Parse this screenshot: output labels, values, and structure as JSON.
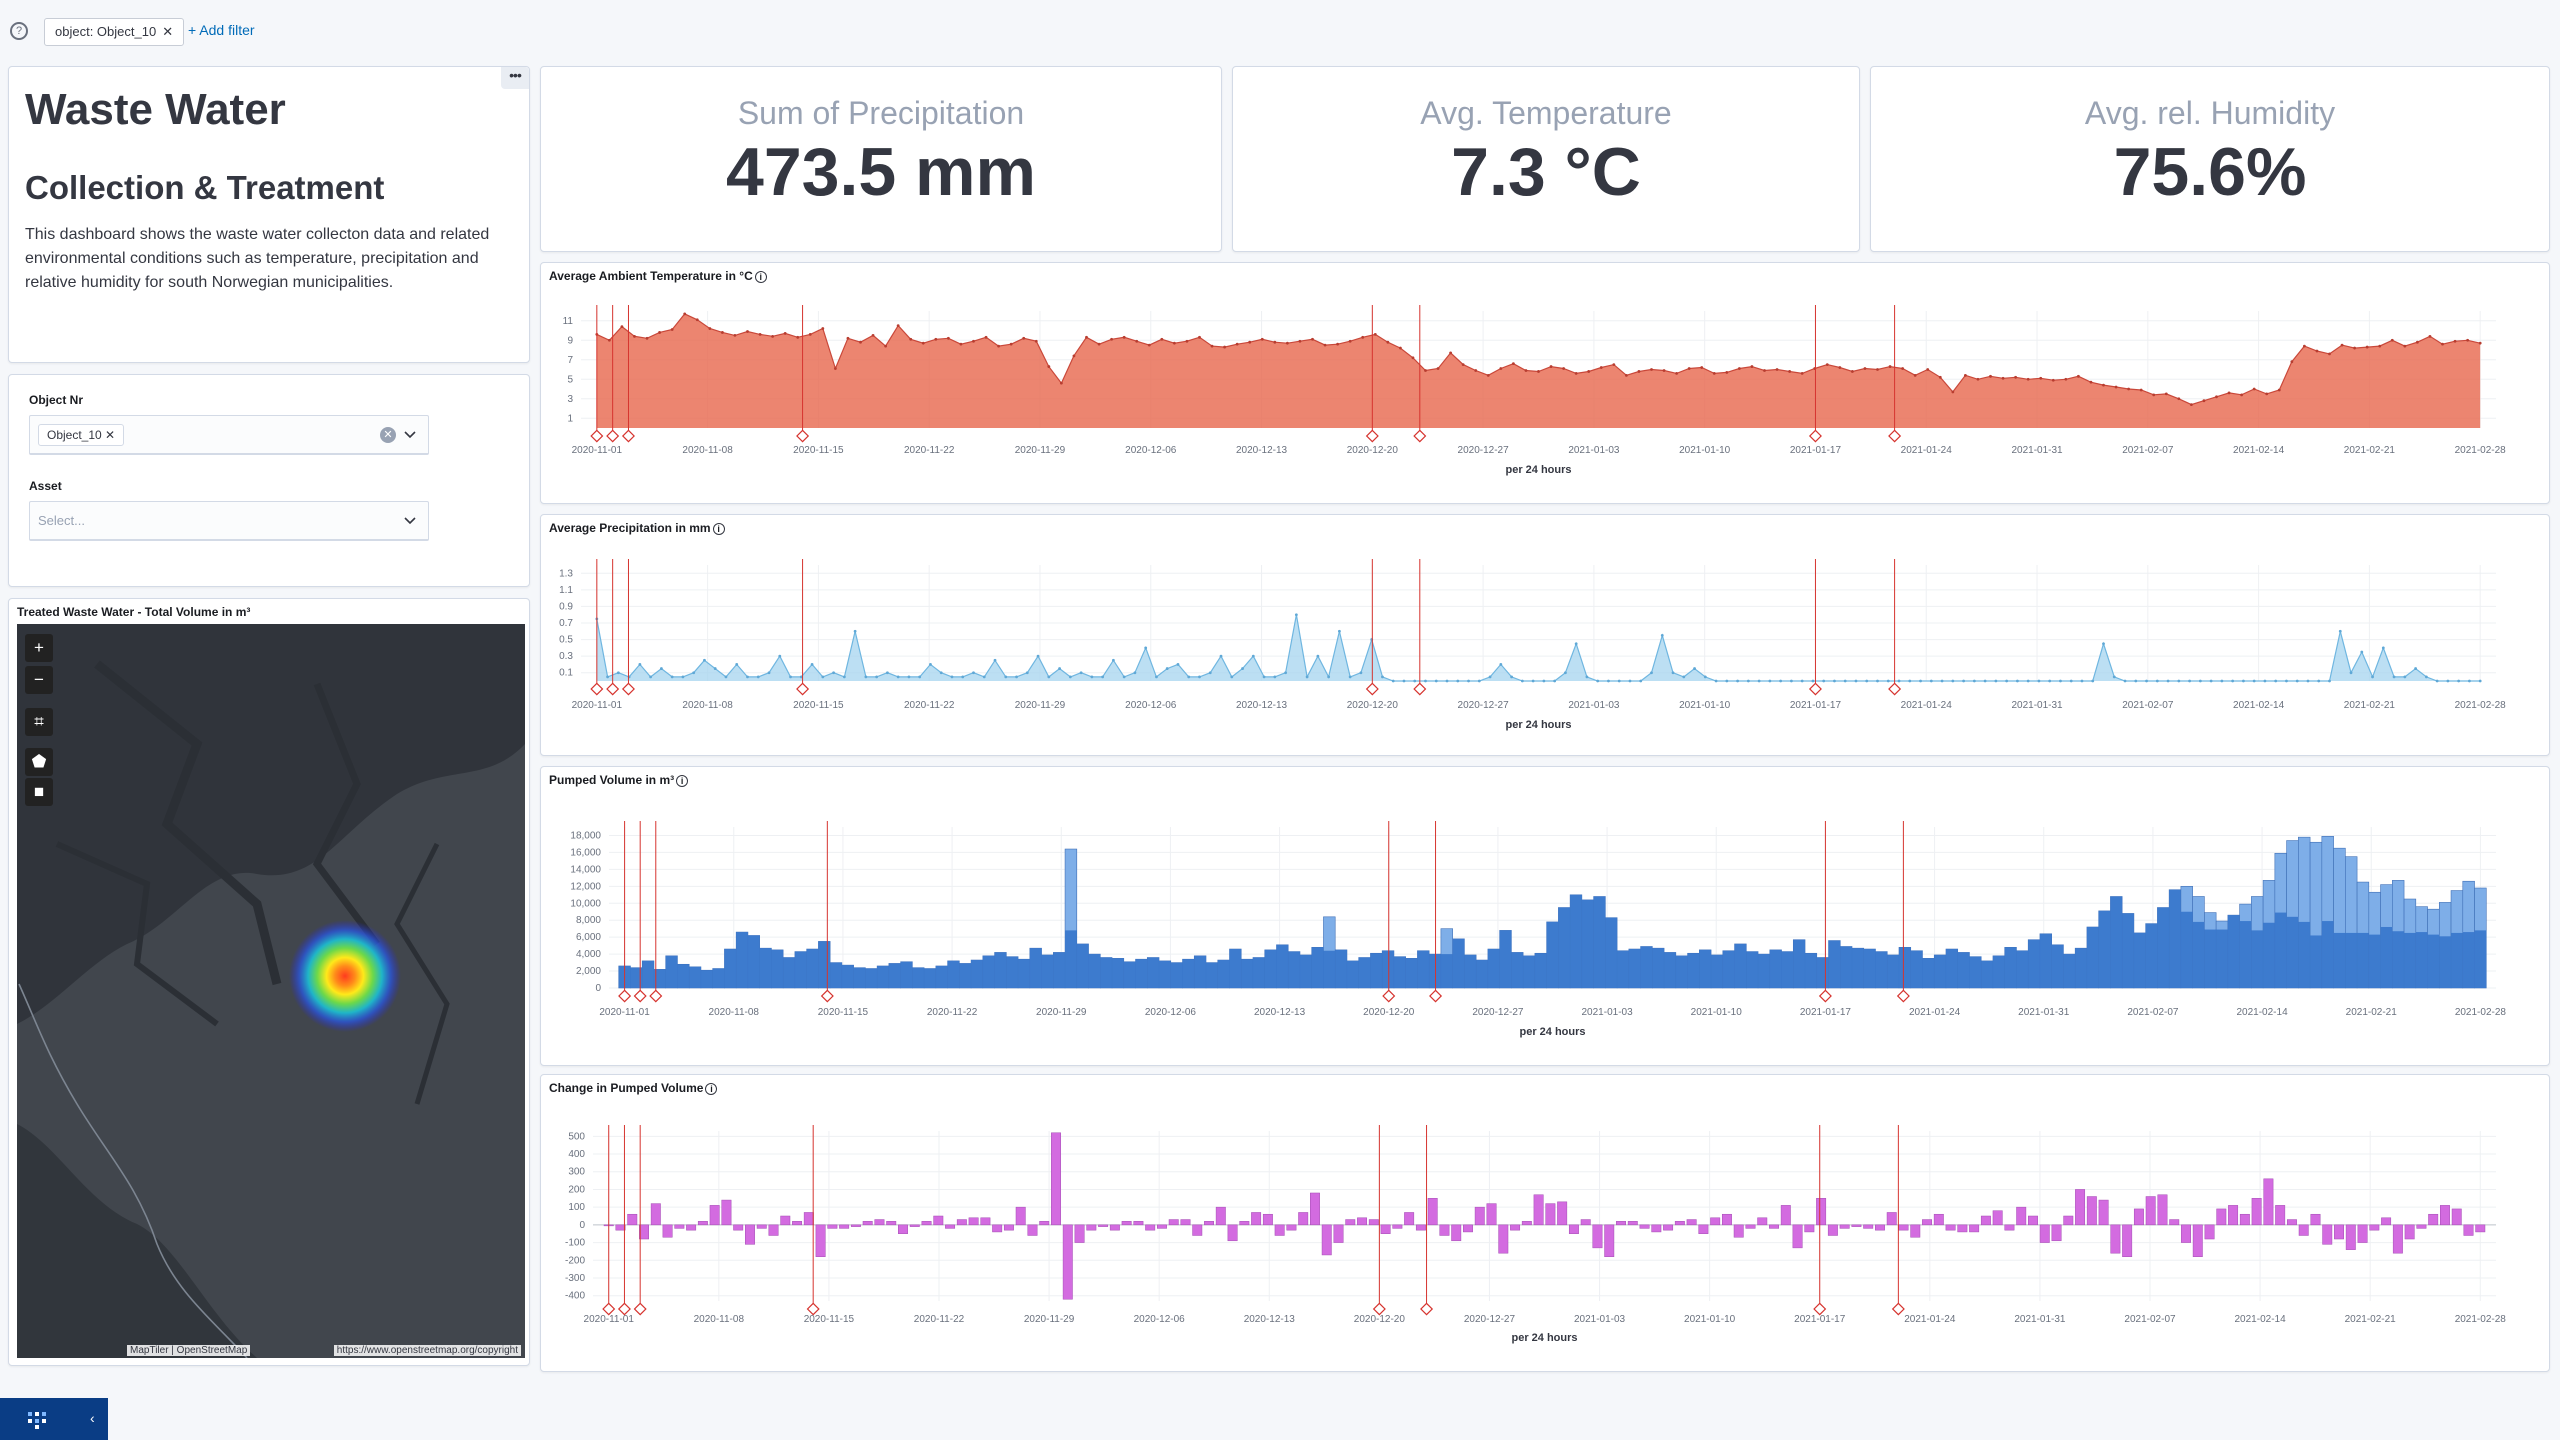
{
  "filters": {
    "items": [
      {
        "label": "object: Object_10"
      }
    ],
    "add_filter": "+ Add filter"
  },
  "intro": {
    "title": "Waste Water",
    "subtitle": "Collection & Treatment",
    "description": "This dashboard shows the waste water collecton data and related environmental conditions such as temperature, precipitation and relative humidity for south Norwegian municipalities."
  },
  "controls": {
    "object_label": "Object Nr",
    "object_value": "Object_10",
    "asset_label": "Asset",
    "asset_placeholder": "Select..."
  },
  "map": {
    "title": "Treated Waste Water - Total Volume in m³",
    "attribution_left": "MapTiler | OpenStreetMap",
    "attribution_right": "https://www.openstreetmap.org/copyright"
  },
  "metrics": [
    {
      "label": "Sum of Precipitation",
      "value": "473.5 mm"
    },
    {
      "label": "Avg. Temperature",
      "value": "7.3 °C"
    },
    {
      "label": "Avg. rel. Humidity",
      "value": "75.6%"
    }
  ],
  "colors": {
    "temperature": "#e7664c",
    "precipitation": "#a6d4ef",
    "pumped_dark": "#3a78cc",
    "pumped_light": "#7eaee8",
    "change": "#d36be0",
    "annotation": "#d6342f"
  },
  "chart_data": [
    {
      "id": "temperature",
      "type": "area",
      "title": "Average Ambient Temperature in °C",
      "xlabel": "per 24 hours",
      "x_range": [
        "2020-10-31",
        "2021-03-01"
      ],
      "x_ticks": [
        "2020-11-01",
        "2020-11-08",
        "2020-11-15",
        "2020-11-22",
        "2020-11-29",
        "2020-12-06",
        "2020-12-13",
        "2020-12-20",
        "2020-12-27",
        "2021-01-03",
        "2021-01-10",
        "2021-01-17",
        "2021-01-24",
        "2021-01-31",
        "2021-02-07",
        "2021-02-14",
        "2021-02-21",
        "2021-02-28"
      ],
      "y_ticks": [
        1,
        3,
        5,
        7,
        9,
        11
      ],
      "ylim": [
        0,
        12
      ],
      "series": [
        {
          "values": [
            9.6,
            9.0,
            10.4,
            9.4,
            9.2,
            9.8,
            10.1,
            11.7,
            11.1,
            10.2,
            9.8,
            9.5,
            9.9,
            9.6,
            9.4,
            9.7,
            9.3,
            9.6,
            10.2,
            6.1,
            9.2,
            8.8,
            9.5,
            8.4,
            10.5,
            9.1,
            8.7,
            9.1,
            9.2,
            8.6,
            8.9,
            9.3,
            8.4,
            8.6,
            9.2,
            8.9,
            6.3,
            4.6,
            7.4,
            9.3,
            8.6,
            9.1,
            9.3,
            8.9,
            8.5,
            9.1,
            8.7,
            8.9,
            9.3,
            8.4,
            8.3,
            8.6,
            8.8,
            9.1,
            8.8,
            8.7,
            8.9,
            9.1,
            8.5,
            8.6,
            8.9,
            9.3,
            9.6,
            8.8,
            8.2,
            7.2,
            5.9,
            6.1,
            7.7,
            6.5,
            5.9,
            5.4,
            6.1,
            6.6,
            5.9,
            5.8,
            6.3,
            6.1,
            5.6,
            5.8,
            6.2,
            6.5,
            5.4,
            5.8,
            6.0,
            5.9,
            5.6,
            6.1,
            6.2,
            5.6,
            5.7,
            6.1,
            6.3,
            5.9,
            6.0,
            5.8,
            5.6,
            6.1,
            6.5,
            6.2,
            5.8,
            6.1,
            6.0,
            6.3,
            6.1,
            5.4,
            6.0,
            5.2,
            3.7,
            5.4,
            5.0,
            5.3,
            5.1,
            5.2,
            5.0,
            5.1,
            4.9,
            5.0,
            5.3,
            4.7,
            4.4,
            4.2,
            4.0,
            3.9,
            3.4,
            3.5,
            3.0,
            2.4,
            2.8,
            3.2,
            3.6,
            3.4,
            4.0,
            3.5,
            3.9,
            6.8,
            8.4,
            7.9,
            7.6,
            8.5,
            8.2,
            8.3,
            8.4,
            9.0,
            8.4,
            8.8,
            9.4,
            8.6,
            8.9,
            9.0,
            8.7
          ]
        }
      ],
      "annotations": [
        "2020-11-01",
        "2020-11-02",
        "2020-11-03",
        "2020-11-14",
        "2020-12-20",
        "2020-12-23",
        "2021-01-17",
        "2021-01-22"
      ]
    },
    {
      "id": "precipitation",
      "type": "area",
      "title": "Average Precipitation in mm",
      "xlabel": "per 24 hours",
      "x_range": [
        "2020-10-31",
        "2021-03-01"
      ],
      "x_ticks": [
        "2020-11-01",
        "2020-11-08",
        "2020-11-15",
        "2020-11-22",
        "2020-11-29",
        "2020-12-06",
        "2020-12-13",
        "2020-12-20",
        "2020-12-27",
        "2021-01-03",
        "2021-01-10",
        "2021-01-17",
        "2021-01-24",
        "2021-01-31",
        "2021-02-07",
        "2021-02-14",
        "2021-02-21",
        "2021-02-28"
      ],
      "y_ticks": [
        0.1,
        0.3,
        0.5,
        0.7,
        0.9,
        1.1,
        1.3
      ],
      "ylim": [
        0,
        1.4
      ],
      "series": [
        {
          "values": [
            0.75,
            0.05,
            0.1,
            0.05,
            0.2,
            0.05,
            0.15,
            0.05,
            0.05,
            0.1,
            0.25,
            0.15,
            0.05,
            0.2,
            0.05,
            0.05,
            0.1,
            0.3,
            0.05,
            0.05,
            0.2,
            0.05,
            0.1,
            0.05,
            0.6,
            0.05,
            0.05,
            0.1,
            0.05,
            0.05,
            0.05,
            0.2,
            0.1,
            0.05,
            0.05,
            0.1,
            0.05,
            0.25,
            0.05,
            0.05,
            0.1,
            0.3,
            0.05,
            0.15,
            0.05,
            0.1,
            0.05,
            0.05,
            0.25,
            0.05,
            0.1,
            0.4,
            0.05,
            0.15,
            0.2,
            0.05,
            0.05,
            0.1,
            0.3,
            0.05,
            0.15,
            0.3,
            0.05,
            0.05,
            0.1,
            0.8,
            0.05,
            0.3,
            0.05,
            0.6,
            0.05,
            0.1,
            0.5,
            0.05,
            0.0,
            0.0,
            0.0,
            0.0,
            0.0,
            0.0,
            0.0,
            0.0,
            0.0,
            0.05,
            0.2,
            0.05,
            0.0,
            0.0,
            0.0,
            0.0,
            0.1,
            0.45,
            0.05,
            0.0,
            0.0,
            0.0,
            0.0,
            0.0,
            0.1,
            0.55,
            0.1,
            0.05,
            0.15,
            0.05,
            0.0,
            0.0,
            0.0,
            0.0,
            0.0,
            0.0,
            0.0,
            0.0,
            0.0,
            0.0,
            0.0,
            0.0,
            0.0,
            0.0,
            0.0,
            0.0,
            0.0,
            0.0,
            0.0,
            0.0,
            0.0,
            0.0,
            0.0,
            0.0,
            0.0,
            0.0,
            0.0,
            0.0,
            0.0,
            0.0,
            0.0,
            0.0,
            0.0,
            0.0,
            0.0,
            0.0,
            0.45,
            0.05,
            0.0,
            0.0,
            0.0,
            0.0,
            0.0,
            0.0,
            0.0,
            0.0,
            0.0,
            0.0,
            0.0,
            0.0,
            0.0,
            0.0,
            0.0,
            0.0,
            0.0,
            0.0,
            0.0,
            0.0,
            0.6,
            0.1,
            0.35,
            0.05,
            0.4,
            0.05,
            0.05,
            0.15,
            0.05,
            0.0,
            0.0,
            0.0,
            0.0,
            0.0
          ]
        }
      ],
      "annotations": [
        "2020-11-01",
        "2020-11-02",
        "2020-11-03",
        "2020-11-14",
        "2020-12-20",
        "2020-12-23",
        "2021-01-17",
        "2021-01-22"
      ]
    },
    {
      "id": "pumped",
      "type": "bar",
      "title": "Pumped Volume in m³",
      "xlabel": "per 24 hours",
      "x_range": [
        "2020-10-31",
        "2021-03-01"
      ],
      "x_ticks": [
        "2020-11-01",
        "2020-11-08",
        "2020-11-15",
        "2020-11-22",
        "2020-11-29",
        "2020-12-06",
        "2020-12-13",
        "2020-12-20",
        "2020-12-27",
        "2021-01-03",
        "2021-01-10",
        "2021-01-17",
        "2021-01-24",
        "2021-01-31",
        "2021-02-07",
        "2021-02-14",
        "2021-02-21",
        "2021-02-28"
      ],
      "y_ticks": [
        0,
        2000,
        4000,
        6000,
        8000,
        10000,
        12000,
        14000,
        16000,
        18000
      ],
      "y_tick_labels": [
        "0",
        "2,000",
        "4,000",
        "6,000",
        "8,000",
        "10,000",
        "12,000",
        "14,000",
        "16,000",
        "18,000"
      ],
      "ylim": [
        0,
        19000
      ],
      "series": [
        {
          "values": [
            2600,
            2400,
            3200,
            2200,
            3800,
            2800,
            2500,
            2100,
            2300,
            4600,
            6600,
            6200,
            4700,
            4500,
            3600,
            4300,
            4600,
            5500,
            3000,
            2700,
            2400,
            2300,
            2600,
            2900,
            3100,
            2400,
            2300,
            2600,
            3200,
            2900,
            3300,
            3800,
            4200,
            3700,
            3400,
            4700,
            3900,
            4200,
            16400,
            5200,
            4000,
            3600,
            3500,
            3100,
            3400,
            3600,
            3200,
            3000,
            3400,
            3800,
            3000,
            3300,
            4600,
            3400,
            3600,
            4500,
            5100,
            4300,
            3900,
            4800,
            8400,
            4500,
            3200,
            3600,
            4100,
            4400,
            3700,
            3500,
            4400,
            4000,
            7000,
            5800,
            3900,
            3300,
            4600,
            6800,
            4200,
            3800,
            4100,
            7800,
            9500,
            11000,
            10400,
            10800,
            8300,
            4400,
            4600,
            4900,
            4700,
            4200,
            3800,
            4100,
            4500,
            3900,
            4400,
            5200,
            4300,
            4000,
            4500,
            4300,
            5700,
            4100,
            3600,
            5600,
            4900,
            4700,
            4600,
            4300,
            3900,
            4800,
            4400,
            3500,
            3900,
            4600,
            4200,
            3700,
            3200,
            3800,
            4800,
            4400,
            5700,
            6400,
            5100,
            4000,
            4700,
            7200,
            9100,
            10800,
            8800,
            6500,
            7600,
            9500,
            11600,
            12000,
            10800,
            8900,
            7900,
            8600,
            9900,
            10800,
            12700,
            15900,
            17400,
            17800,
            17200,
            17900,
            16500,
            15500,
            12500,
            11300,
            12200,
            12700,
            10500,
            9600,
            9300,
            10100,
            11500,
            12600,
            11800
          ]
        },
        {
          "values": [
            2600,
            2400,
            3200,
            2200,
            3800,
            2800,
            2500,
            2100,
            2300,
            4600,
            6600,
            6200,
            4700,
            4500,
            3600,
            4300,
            4600,
            5500,
            3000,
            2700,
            2400,
            2300,
            2600,
            2900,
            3100,
            2400,
            2300,
            2600,
            3200,
            2900,
            3300,
            3800,
            4200,
            3700,
            3400,
            4700,
            3900,
            4200,
            6800,
            5200,
            4000,
            3600,
            3500,
            3100,
            3400,
            3600,
            3200,
            3000,
            3400,
            3800,
            3000,
            3300,
            4600,
            3400,
            3600,
            4500,
            5100,
            4300,
            3900,
            4800,
            4400,
            4500,
            3200,
            3600,
            4100,
            4400,
            3700,
            3500,
            4400,
            4000,
            4000,
            5800,
            3900,
            3300,
            4600,
            6800,
            4200,
            3800,
            4100,
            7800,
            9500,
            11000,
            10400,
            10800,
            8300,
            4400,
            4600,
            4900,
            4700,
            4200,
            3800,
            4100,
            4500,
            3900,
            4400,
            5200,
            4300,
            4000,
            4500,
            4300,
            5700,
            4100,
            3600,
            5600,
            4900,
            4700,
            4600,
            4300,
            3900,
            4800,
            4400,
            3500,
            3900,
            4600,
            4200,
            3700,
            3200,
            3800,
            4800,
            4400,
            5700,
            6400,
            5100,
            4000,
            4700,
            7200,
            9100,
            10800,
            8800,
            6500,
            7600,
            9500,
            11600,
            9000,
            7800,
            6900,
            6900,
            8600,
            7900,
            6800,
            7700,
            8900,
            8400,
            7800,
            6200,
            7900,
            6500,
            6500,
            6500,
            6300,
            7200,
            6700,
            6500,
            6600,
            6300,
            6100,
            6500,
            6600,
            6800
          ]
        }
      ],
      "annotations": [
        "2020-11-01",
        "2020-11-02",
        "2020-11-03",
        "2020-11-14",
        "2020-12-20",
        "2020-12-23",
        "2021-01-17",
        "2021-01-22"
      ]
    },
    {
      "id": "change",
      "type": "bar",
      "title": "Change in Pumped Volume",
      "xlabel": "per 24 hours",
      "x_range": [
        "2020-10-31",
        "2021-03-01"
      ],
      "x_ticks": [
        "2020-11-01",
        "2020-11-08",
        "2020-11-15",
        "2020-11-22",
        "2020-11-29",
        "2020-12-06",
        "2020-12-13",
        "2020-12-20",
        "2020-12-27",
        "2021-01-03",
        "2021-01-10",
        "2021-01-17",
        "2021-01-24",
        "2021-01-31",
        "2021-02-07",
        "2021-02-14",
        "2021-02-21",
        "2021-02-28"
      ],
      "y_ticks": [
        -400,
        -300,
        -200,
        -100,
        0,
        100,
        200,
        300,
        400,
        500
      ],
      "ylim": [
        -430,
        530
      ],
      "series": [
        {
          "values": [
            0,
            -30,
            60,
            -80,
            120,
            -70,
            -20,
            -30,
            20,
            110,
            140,
            -30,
            -110,
            -20,
            -60,
            50,
            20,
            70,
            -180,
            -20,
            -20,
            -10,
            20,
            30,
            20,
            -50,
            -10,
            20,
            50,
            -20,
            30,
            40,
            40,
            -40,
            -30,
            100,
            -60,
            20,
            520,
            -420,
            -100,
            -30,
            -10,
            -30,
            20,
            20,
            -30,
            -20,
            30,
            30,
            -60,
            20,
            100,
            -90,
            20,
            70,
            60,
            -60,
            -30,
            70,
            180,
            -170,
            -100,
            30,
            40,
            30,
            -50,
            -20,
            70,
            -30,
            150,
            -60,
            -90,
            -40,
            100,
            120,
            -160,
            -30,
            20,
            170,
            120,
            130,
            -50,
            30,
            -130,
            -180,
            20,
            20,
            -20,
            -40,
            -30,
            20,
            30,
            -50,
            40,
            60,
            -70,
            -20,
            40,
            -20,
            110,
            -130,
            -40,
            150,
            -60,
            -20,
            -10,
            -20,
            -30,
            70,
            -30,
            -70,
            30,
            60,
            -30,
            -40,
            -40,
            50,
            80,
            -30,
            100,
            50,
            -100,
            -90,
            50,
            200,
            160,
            140,
            -160,
            -180,
            90,
            160,
            170,
            30,
            -100,
            -180,
            -80,
            90,
            110,
            60,
            150,
            260,
            110,
            30,
            -60,
            60,
            -110,
            -80,
            -140,
            -100,
            -30,
            40,
            -160,
            -80,
            -20,
            60,
            110,
            90,
            -60,
            -40
          ]
        }
      ],
      "annotations": [
        "2020-11-01",
        "2020-11-02",
        "2020-11-03",
        "2020-11-14",
        "2020-12-20",
        "2020-12-23",
        "2021-01-17",
        "2021-01-22"
      ]
    }
  ]
}
